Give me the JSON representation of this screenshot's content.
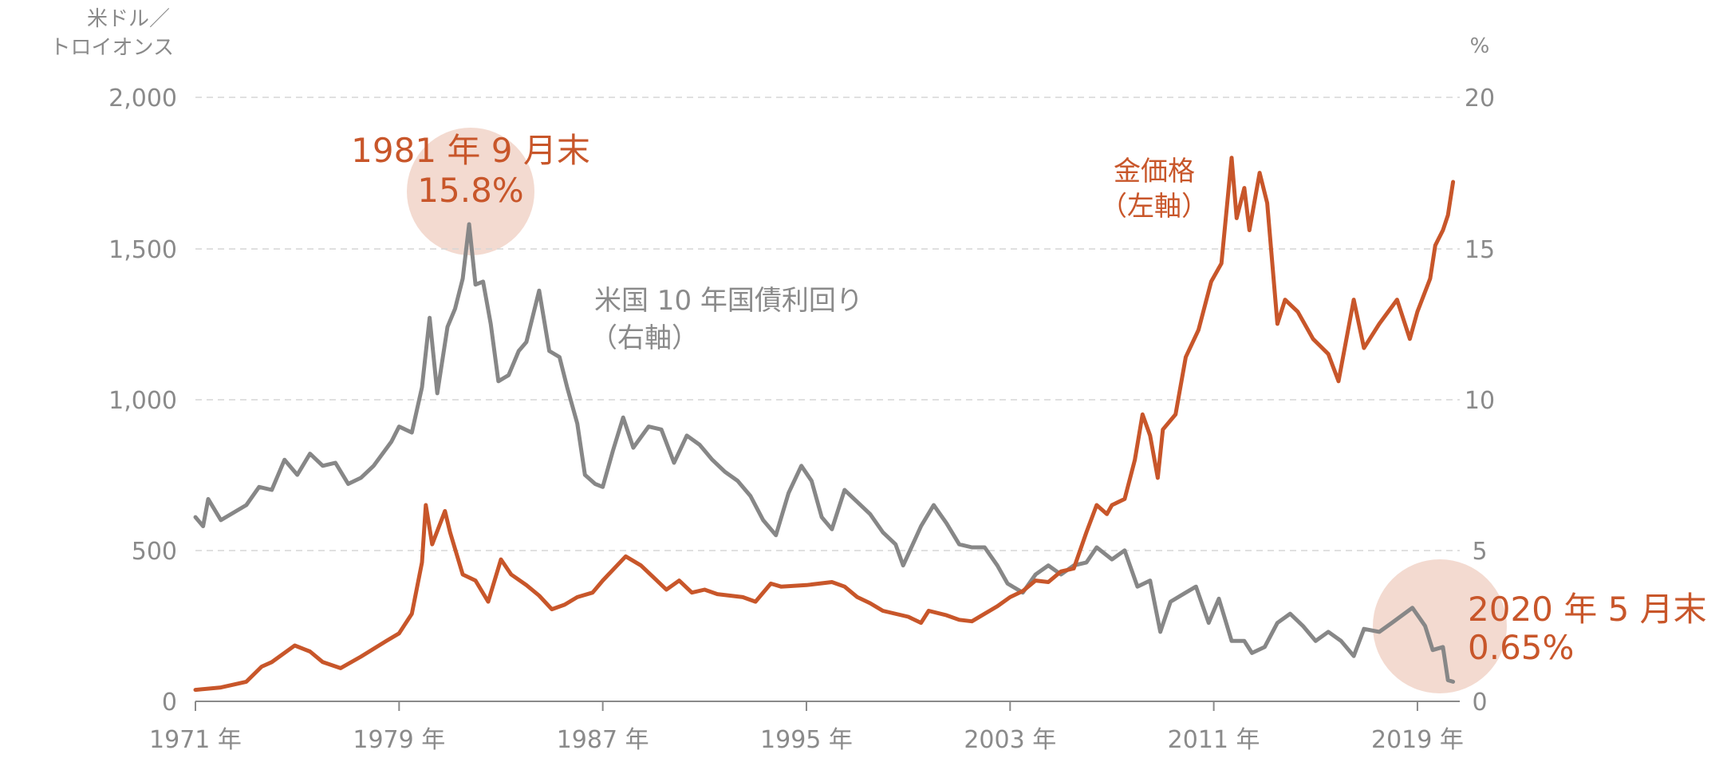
{
  "chart_data": {
    "type": "line",
    "left_axis": {
      "unit_line1": "米ドル／",
      "unit_line2": "トロイオンス",
      "ylim": [
        0,
        2000
      ],
      "ticks": [
        "0",
        "500",
        "1,000",
        "1,500",
        "2,000"
      ]
    },
    "right_axis": {
      "unit": "%",
      "ylim": [
        0,
        20
      ],
      "ticks": [
        "0",
        "5",
        "10",
        "15",
        "20"
      ]
    },
    "x_axis": {
      "xlim": [
        1971,
        2020.6
      ],
      "ticks": [
        "1971 年",
        "1979 年",
        "1987 年",
        "1995 年",
        "2003 年",
        "2011 年",
        "2019 年"
      ],
      "tick_years": [
        1971,
        1979,
        1987,
        1995,
        2003,
        2011,
        2019
      ]
    },
    "grid": "horizontal dashed",
    "series": [
      {
        "name": "金価格 （左軸）",
        "axis": "left",
        "color": "#c8562a",
        "points": [
          [
            1971.0,
            38
          ],
          [
            1972.0,
            46
          ],
          [
            1973.0,
            65
          ],
          [
            1973.6,
            115
          ],
          [
            1974.0,
            130
          ],
          [
            1974.9,
            185
          ],
          [
            1975.5,
            165
          ],
          [
            1976.0,
            130
          ],
          [
            1976.7,
            110
          ],
          [
            1977.5,
            148
          ],
          [
            1978.5,
            200
          ],
          [
            1979.0,
            225
          ],
          [
            1979.5,
            290
          ],
          [
            1979.9,
            460
          ],
          [
            1980.05,
            650
          ],
          [
            1980.3,
            520
          ],
          [
            1980.8,
            630
          ],
          [
            1981.0,
            560
          ],
          [
            1981.5,
            420
          ],
          [
            1982.0,
            400
          ],
          [
            1982.5,
            330
          ],
          [
            1983.0,
            470
          ],
          [
            1983.4,
            420
          ],
          [
            1984.0,
            385
          ],
          [
            1984.5,
            350
          ],
          [
            1985.0,
            305
          ],
          [
            1985.5,
            320
          ],
          [
            1986.0,
            345
          ],
          [
            1986.6,
            360
          ],
          [
            1987.0,
            400
          ],
          [
            1987.9,
            480
          ],
          [
            1988.5,
            450
          ],
          [
            1989.0,
            410
          ],
          [
            1989.5,
            370
          ],
          [
            1990.0,
            400
          ],
          [
            1990.5,
            360
          ],
          [
            1991.0,
            370
          ],
          [
            1991.5,
            355
          ],
          [
            1992.0,
            350
          ],
          [
            1992.5,
            345
          ],
          [
            1993.0,
            330
          ],
          [
            1993.6,
            390
          ],
          [
            1994.0,
            380
          ],
          [
            1995.0,
            385
          ],
          [
            1996.0,
            395
          ],
          [
            1996.5,
            380
          ],
          [
            1997.0,
            345
          ],
          [
            1997.5,
            325
          ],
          [
            1998.0,
            300
          ],
          [
            1999.0,
            280
          ],
          [
            1999.5,
            260
          ],
          [
            1999.8,
            300
          ],
          [
            2000.5,
            285
          ],
          [
            2001.0,
            270
          ],
          [
            2001.5,
            265
          ],
          [
            2002.0,
            290
          ],
          [
            2002.5,
            315
          ],
          [
            2003.0,
            345
          ],
          [
            2003.5,
            365
          ],
          [
            2004.0,
            400
          ],
          [
            2004.5,
            395
          ],
          [
            2005.0,
            430
          ],
          [
            2005.5,
            440
          ],
          [
            2006.0,
            560
          ],
          [
            2006.4,
            650
          ],
          [
            2006.8,
            620
          ],
          [
            2007.0,
            650
          ],
          [
            2007.5,
            670
          ],
          [
            2007.9,
            800
          ],
          [
            2008.2,
            950
          ],
          [
            2008.5,
            880
          ],
          [
            2008.8,
            740
          ],
          [
            2009.0,
            900
          ],
          [
            2009.5,
            950
          ],
          [
            2009.9,
            1140
          ],
          [
            2010.4,
            1230
          ],
          [
            2010.9,
            1390
          ],
          [
            2011.3,
            1450
          ],
          [
            2011.7,
            1800
          ],
          [
            2011.9,
            1600
          ],
          [
            2012.2,
            1700
          ],
          [
            2012.4,
            1560
          ],
          [
            2012.8,
            1750
          ],
          [
            2013.1,
            1650
          ],
          [
            2013.5,
            1250
          ],
          [
            2013.8,
            1330
          ],
          [
            2014.3,
            1290
          ],
          [
            2014.9,
            1200
          ],
          [
            2015.5,
            1150
          ],
          [
            2015.9,
            1060
          ],
          [
            2016.5,
            1330
          ],
          [
            2016.9,
            1170
          ],
          [
            2017.5,
            1250
          ],
          [
            2018.2,
            1330
          ],
          [
            2018.7,
            1200
          ],
          [
            2019.0,
            1290
          ],
          [
            2019.5,
            1400
          ],
          [
            2019.7,
            1510
          ],
          [
            2020.0,
            1560
          ],
          [
            2020.2,
            1610
          ],
          [
            2020.4,
            1720
          ]
        ]
      },
      {
        "name": "米国 10 年国債利回り （右軸）",
        "axis": "right",
        "color": "#878787",
        "points": [
          [
            1971.0,
            6.1
          ],
          [
            1971.3,
            5.8
          ],
          [
            1971.5,
            6.7
          ],
          [
            1972.0,
            6.0
          ],
          [
            1973.0,
            6.5
          ],
          [
            1973.5,
            7.1
          ],
          [
            1974.0,
            7.0
          ],
          [
            1974.5,
            8.0
          ],
          [
            1975.0,
            7.5
          ],
          [
            1975.5,
            8.2
          ],
          [
            1976.0,
            7.8
          ],
          [
            1976.5,
            7.9
          ],
          [
            1977.0,
            7.2
          ],
          [
            1977.5,
            7.4
          ],
          [
            1978.0,
            7.8
          ],
          [
            1978.7,
            8.6
          ],
          [
            1979.0,
            9.1
          ],
          [
            1979.5,
            8.9
          ],
          [
            1979.9,
            10.4
          ],
          [
            1980.2,
            12.7
          ],
          [
            1980.5,
            10.2
          ],
          [
            1980.9,
            12.4
          ],
          [
            1981.2,
            13.0
          ],
          [
            1981.5,
            14.0
          ],
          [
            1981.75,
            15.8
          ],
          [
            1982.0,
            13.8
          ],
          [
            1982.3,
            13.9
          ],
          [
            1982.6,
            12.5
          ],
          [
            1982.9,
            10.6
          ],
          [
            1983.3,
            10.8
          ],
          [
            1983.7,
            11.6
          ],
          [
            1984.0,
            11.9
          ],
          [
            1984.5,
            13.6
          ],
          [
            1984.9,
            11.6
          ],
          [
            1985.3,
            11.4
          ],
          [
            1985.6,
            10.4
          ],
          [
            1986.0,
            9.2
          ],
          [
            1986.3,
            7.5
          ],
          [
            1986.7,
            7.2
          ],
          [
            1987.0,
            7.1
          ],
          [
            1987.4,
            8.3
          ],
          [
            1987.8,
            9.4
          ],
          [
            1988.2,
            8.4
          ],
          [
            1988.8,
            9.1
          ],
          [
            1989.3,
            9.0
          ],
          [
            1989.8,
            7.9
          ],
          [
            1990.3,
            8.8
          ],
          [
            1990.8,
            8.5
          ],
          [
            1991.3,
            8.0
          ],
          [
            1991.8,
            7.6
          ],
          [
            1992.3,
            7.3
          ],
          [
            1992.8,
            6.8
          ],
          [
            1993.3,
            6.0
          ],
          [
            1993.8,
            5.5
          ],
          [
            1994.3,
            6.9
          ],
          [
            1994.8,
            7.8
          ],
          [
            1995.2,
            7.3
          ],
          [
            1995.6,
            6.1
          ],
          [
            1996.0,
            5.7
          ],
          [
            1996.5,
            7.0
          ],
          [
            1997.0,
            6.6
          ],
          [
            1997.5,
            6.2
          ],
          [
            1998.0,
            5.6
          ],
          [
            1998.5,
            5.2
          ],
          [
            1998.8,
            4.5
          ],
          [
            1999.5,
            5.8
          ],
          [
            2000.0,
            6.5
          ],
          [
            2000.5,
            5.9
          ],
          [
            2001.0,
            5.2
          ],
          [
            2001.5,
            5.1
          ],
          [
            2002.0,
            5.1
          ],
          [
            2002.5,
            4.5
          ],
          [
            2002.9,
            3.9
          ],
          [
            2003.5,
            3.6
          ],
          [
            2004.0,
            4.2
          ],
          [
            2004.5,
            4.5
          ],
          [
            2005.0,
            4.2
          ],
          [
            2005.5,
            4.5
          ],
          [
            2006.0,
            4.6
          ],
          [
            2006.4,
            5.1
          ],
          [
            2007.0,
            4.7
          ],
          [
            2007.5,
            5.0
          ],
          [
            2008.0,
            3.8
          ],
          [
            2008.5,
            4.0
          ],
          [
            2008.9,
            2.3
          ],
          [
            2009.3,
            3.3
          ],
          [
            2009.9,
            3.6
          ],
          [
            2010.3,
            3.8
          ],
          [
            2010.8,
            2.6
          ],
          [
            2011.2,
            3.4
          ],
          [
            2011.7,
            2.0
          ],
          [
            2012.2,
            2.0
          ],
          [
            2012.5,
            1.6
          ],
          [
            2013.0,
            1.8
          ],
          [
            2013.5,
            2.6
          ],
          [
            2014.0,
            2.9
          ],
          [
            2014.5,
            2.5
          ],
          [
            2015.0,
            2.0
          ],
          [
            2015.5,
            2.3
          ],
          [
            2016.0,
            2.0
          ],
          [
            2016.5,
            1.5
          ],
          [
            2016.9,
            2.4
          ],
          [
            2017.5,
            2.3
          ],
          [
            2018.0,
            2.6
          ],
          [
            2018.8,
            3.1
          ],
          [
            2019.3,
            2.5
          ],
          [
            2019.6,
            1.7
          ],
          [
            2020.0,
            1.8
          ],
          [
            2020.2,
            0.7
          ],
          [
            2020.4,
            0.65
          ]
        ]
      }
    ],
    "annotations": {
      "peak_date": "1981 年 9 月末",
      "peak_value": "15.8%",
      "recent_date": "2020 年 5 月末",
      "recent_value": "0.65%",
      "gold_label_line1": "金価格",
      "gold_label_line2": "（左軸）",
      "yield_label_line1": "米国 10 年国債利回り",
      "yield_label_line2": "（右軸）"
    }
  },
  "colors": {
    "gold": "#c8562a",
    "yield": "#878787",
    "highlight": "#f3dad0",
    "grid": "#d6d6d6",
    "axis": "#8a8a8a"
  }
}
